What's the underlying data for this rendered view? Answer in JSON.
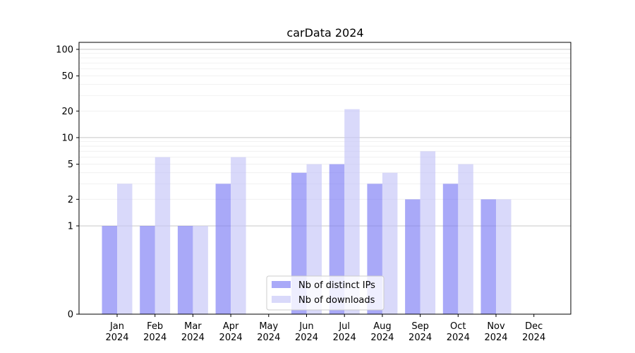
{
  "chart_data": {
    "type": "bar",
    "title": "carData 2024",
    "xlabel": "",
    "ylabel": "",
    "yscale": "symlog",
    "ylim": [
      0,
      120
    ],
    "yticks": [
      0,
      1,
      2,
      5,
      10,
      20,
      50,
      100
    ],
    "grid": true,
    "legend_position": "lower center",
    "categories": [
      [
        "Jan",
        "2024"
      ],
      [
        "Feb",
        "2024"
      ],
      [
        "Mar",
        "2024"
      ],
      [
        "Apr",
        "2024"
      ],
      [
        "May",
        "2024"
      ],
      [
        "Jun",
        "2024"
      ],
      [
        "Jul",
        "2024"
      ],
      [
        "Aug",
        "2024"
      ],
      [
        "Sep",
        "2024"
      ],
      [
        "Oct",
        "2024"
      ],
      [
        "Nov",
        "2024"
      ],
      [
        "Dec",
        "2024"
      ]
    ],
    "series": [
      {
        "name": "Nb of distinct IPs",
        "color": "#7b7bf5",
        "opacity": 0.65,
        "values": [
          1,
          1,
          1,
          3,
          0,
          4,
          5,
          3,
          2,
          3,
          2,
          0
        ]
      },
      {
        "name": "Nb of downloads",
        "color": "#c5c5f8",
        "opacity": 0.65,
        "values": [
          3,
          6,
          1,
          6,
          0,
          5,
          21,
          4,
          7,
          5,
          2,
          0
        ]
      }
    ]
  }
}
